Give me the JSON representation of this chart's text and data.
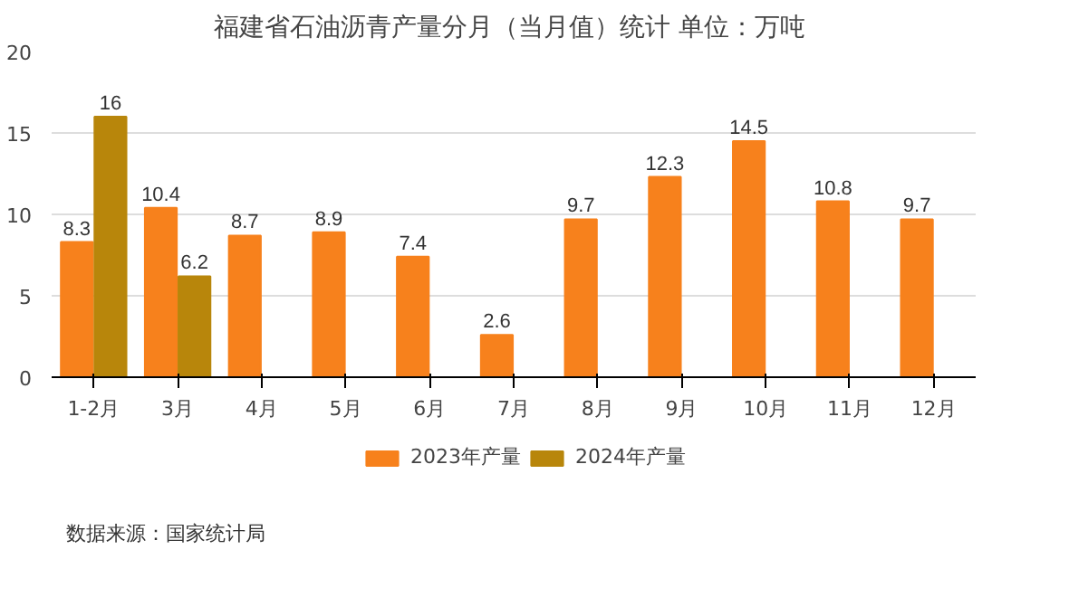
{
  "chart_data": {
    "type": "bar",
    "title": "福建省石油沥青产量分月（当月值）统计  单位：万吨",
    "categories": [
      "1-2月",
      "3月",
      "4月",
      "5月",
      "6月",
      "7月",
      "8月",
      "9月",
      "10月",
      "11月",
      "12月"
    ],
    "series": [
      {
        "name": "2023年产量",
        "color": "#f7811c",
        "values": [
          8.3,
          10.4,
          8.7,
          8.9,
          7.4,
          2.6,
          9.7,
          12.3,
          14.5,
          10.8,
          9.7
        ]
      },
      {
        "name": "2024年产量",
        "color": "#b8860b",
        "values": [
          16,
          6.2,
          null,
          null,
          null,
          null,
          null,
          null,
          null,
          null,
          null
        ]
      }
    ],
    "ylim": [
      0,
      20
    ],
    "yticks": [
      0,
      5,
      10,
      15,
      20
    ],
    "grid": "y",
    "legend": "bottom",
    "data_labels": true,
    "annotations": [
      "数据来源：国家统计局"
    ]
  }
}
